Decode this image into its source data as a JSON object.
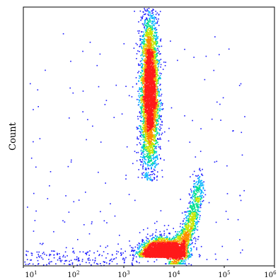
{
  "chart_data": {
    "type": "scatter",
    "subtype": "flow-cytometry density dot plot",
    "title": "",
    "xlabel": "",
    "ylabel": "Count",
    "x_scale": "log",
    "xlim": [
      10,
      1000000
    ],
    "x_ticks": [
      {
        "value": 10,
        "base": "10",
        "exp": "1"
      },
      {
        "value": 100,
        "base": "10",
        "exp": "2"
      },
      {
        "value": 1000,
        "base": "10",
        "exp": "3"
      },
      {
        "value": 10000,
        "base": "10",
        "exp": "4"
      },
      {
        "value": 100000,
        "base": "10",
        "exp": "5"
      },
      {
        "value": 1000000,
        "base": "10",
        "exp": "6"
      }
    ],
    "y_ticks_shown": false,
    "grid": false,
    "legend": "none",
    "color_scale": [
      "#1a1aff",
      "#00b4ff",
      "#00e08a",
      "#c8e600",
      "#ff8c00",
      "#ff1a1a"
    ],
    "series": [
      {
        "population": "upper cluster",
        "x_center": 3200,
        "y_range_fraction": [
          0.35,
          1.0
        ],
        "density": "high in center"
      },
      {
        "population": "lower cluster",
        "x_center": 6000,
        "y_range_fraction": [
          0.0,
          0.1
        ],
        "density": "peak (red) near 6000"
      },
      {
        "population": "rising tail",
        "x_range": [
          8000,
          40000
        ],
        "y_range_fraction": [
          0.05,
          0.35
        ]
      }
    ]
  }
}
